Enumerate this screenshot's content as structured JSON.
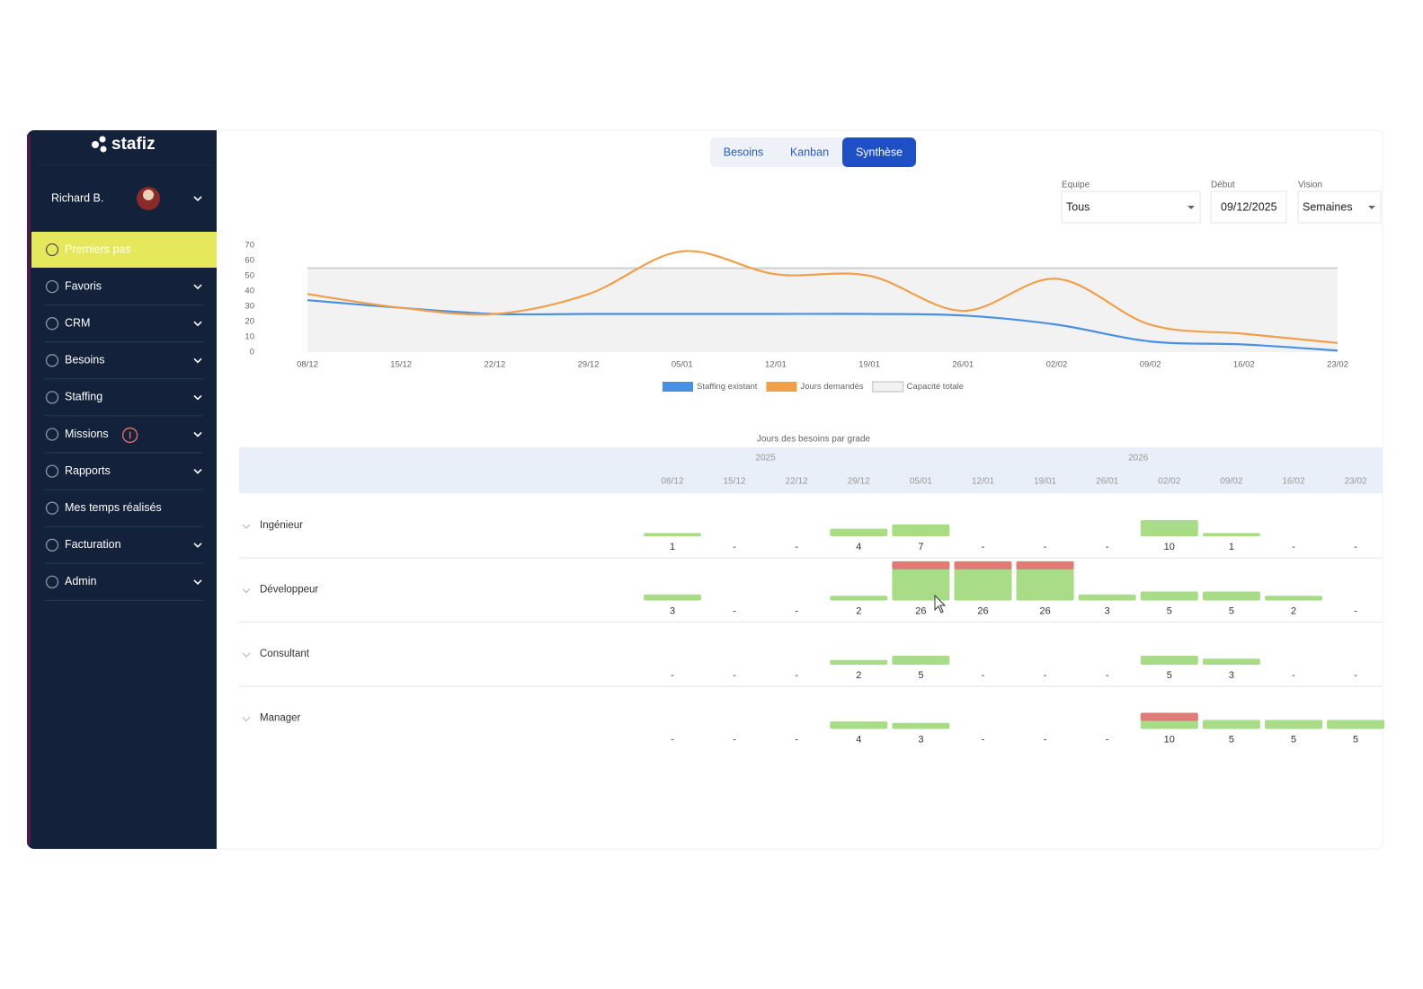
{
  "sidebar": {
    "logo": "stafiz",
    "user": "Richard B.",
    "menu": [
      {
        "label": "Premiers pas",
        "active": true,
        "expandable": false,
        "info": false
      },
      {
        "label": "Favoris",
        "active": false,
        "expandable": true,
        "info": false
      },
      {
        "label": "CRM",
        "active": false,
        "expandable": true,
        "info": false
      },
      {
        "label": "Besoins",
        "active": false,
        "expandable": true,
        "info": false
      },
      {
        "label": "Staffing",
        "active": false,
        "expandable": true,
        "info": false
      },
      {
        "label": "Missions",
        "active": false,
        "expandable": true,
        "info": true
      },
      {
        "label": "Rapports",
        "active": false,
        "expandable": true,
        "info": false
      },
      {
        "label": "Mes temps réalisés",
        "active": false,
        "expandable": false,
        "info": false
      },
      {
        "label": "Facturation",
        "active": false,
        "expandable": true,
        "info": false
      },
      {
        "label": "Admin",
        "active": false,
        "expandable": true,
        "info": false
      }
    ]
  },
  "tabs": [
    {
      "label": "Besoins",
      "active": false
    },
    {
      "label": "Kanban",
      "active": false
    },
    {
      "label": "Synthèse",
      "active": true
    }
  ],
  "filters": [
    {
      "label": "Equipe",
      "value": "Tous",
      "dropdown": true
    },
    {
      "label": "Début",
      "value": "09/12/2025",
      "dropdown": false
    },
    {
      "label": "Vision",
      "value": "Semaines",
      "dropdown": true
    }
  ],
  "chart_data": {
    "type": "line",
    "categories": [
      "08/12",
      "15/12",
      "22/12",
      "29/12",
      "05/01",
      "12/01",
      "19/01",
      "26/01",
      "02/02",
      "09/02",
      "16/02",
      "23/02"
    ],
    "series": [
      {
        "name": "Staffing existant",
        "color": "#4a90e2",
        "area": false,
        "values": [
          34,
          29,
          25,
          25,
          25,
          25,
          25,
          24,
          18,
          7,
          5,
          1
        ]
      },
      {
        "name": "Jours demandés",
        "color": "#f0a04b",
        "area": false,
        "values": [
          38,
          29,
          25,
          38,
          66,
          51,
          50,
          27,
          48,
          18,
          12,
          6
        ]
      },
      {
        "name": "Capacité totale",
        "color": "#cfcfcf",
        "area": true,
        "values": [
          55,
          55,
          55,
          55,
          55,
          55,
          55,
          55,
          55,
          55,
          55,
          55
        ]
      }
    ],
    "ylim": [
      0,
      70
    ],
    "yticks": [
      0,
      10,
      20,
      30,
      40,
      50,
      60,
      70
    ],
    "grid": false,
    "legend": "bottom"
  },
  "grade_table": {
    "title": "Jours des besoins par grade",
    "years": [
      {
        "label": "2025",
        "span": [
          0,
          3
        ]
      },
      {
        "label": "2026",
        "span": [
          4,
          11
        ]
      }
    ],
    "weeks": [
      "08/12",
      "15/12",
      "22/12",
      "29/12",
      "05/01",
      "12/01",
      "19/01",
      "26/01",
      "02/02",
      "09/02",
      "16/02",
      "23/02"
    ],
    "bar_color": "#a8dc87",
    "alert_color": "#e07b78",
    "rows": [
      {
        "label": "Ingénieur",
        "values": [
          1,
          "-",
          "-",
          4,
          7,
          "-",
          "-",
          "-",
          10,
          1,
          "-",
          "-"
        ],
        "alerts": [
          false,
          false,
          false,
          false,
          false,
          false,
          false,
          false,
          false,
          false,
          false,
          false
        ]
      },
      {
        "label": "Développeur",
        "values": [
          3,
          "-",
          "-",
          2,
          26,
          26,
          26,
          3,
          5,
          5,
          2,
          "-"
        ],
        "alerts": [
          false,
          false,
          false,
          false,
          true,
          true,
          true,
          false,
          false,
          false,
          false,
          false
        ]
      },
      {
        "label": "Consultant",
        "values": [
          "-",
          "-",
          "-",
          2,
          5,
          "-",
          "-",
          "-",
          5,
          3,
          "-",
          "-"
        ],
        "alerts": [
          false,
          false,
          false,
          false,
          false,
          false,
          false,
          false,
          false,
          false,
          false,
          false
        ]
      },
      {
        "label": "Manager",
        "values": [
          "-",
          "-",
          "-",
          4,
          3,
          "-",
          "-",
          "-",
          10,
          5,
          5,
          5
        ],
        "alerts": [
          false,
          false,
          false,
          false,
          false,
          false,
          false,
          false,
          true,
          false,
          false,
          false
        ]
      }
    ]
  }
}
